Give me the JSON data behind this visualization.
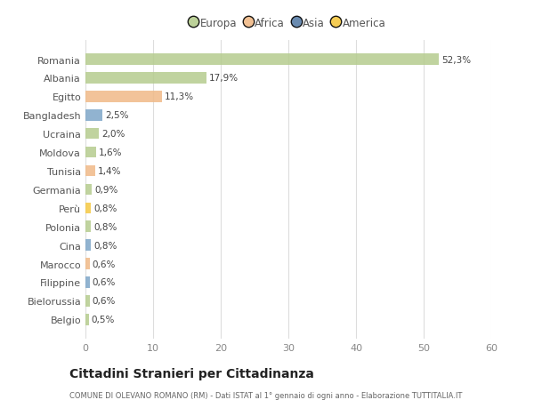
{
  "countries": [
    "Romania",
    "Albania",
    "Egitto",
    "Bangladesh",
    "Ucraina",
    "Moldova",
    "Tunisia",
    "Germania",
    "Perù",
    "Polonia",
    "Cina",
    "Marocco",
    "Filippine",
    "Bielorussia",
    "Belgio"
  ],
  "values": [
    52.3,
    17.9,
    11.3,
    2.5,
    2.0,
    1.6,
    1.4,
    0.9,
    0.8,
    0.8,
    0.8,
    0.6,
    0.6,
    0.6,
    0.5
  ],
  "labels": [
    "52,3%",
    "17,9%",
    "11,3%",
    "2,5%",
    "2,0%",
    "1,6%",
    "1,4%",
    "0,9%",
    "0,8%",
    "0,8%",
    "0,8%",
    "0,6%",
    "0,6%",
    "0,6%",
    "0,5%"
  ],
  "colors": [
    "#b5cc8e",
    "#b5cc8e",
    "#f0b987",
    "#7ea6c8",
    "#b5cc8e",
    "#b5cc8e",
    "#f0b987",
    "#b5cc8e",
    "#f5c842",
    "#b5cc8e",
    "#7ea6c8",
    "#f0b987",
    "#7ea6c8",
    "#b5cc8e",
    "#b5cc8e"
  ],
  "legend_entries": [
    "Europa",
    "Africa",
    "Asia",
    "America"
  ],
  "legend_colors": [
    "#b5cc8e",
    "#f0b987",
    "#5a7fa8",
    "#f5c842"
  ],
  "title": "Cittadini Stranieri per Cittadinanza",
  "subtitle": "COMUNE DI OLEVANO ROMANO (RM) - Dati ISTAT al 1° gennaio di ogni anno - Elaborazione TUTTITALIA.IT",
  "xlim": [
    0,
    60
  ],
  "xticks": [
    0,
    10,
    20,
    30,
    40,
    50,
    60
  ],
  "background_color": "#ffffff",
  "grid_color": "#dddddd"
}
